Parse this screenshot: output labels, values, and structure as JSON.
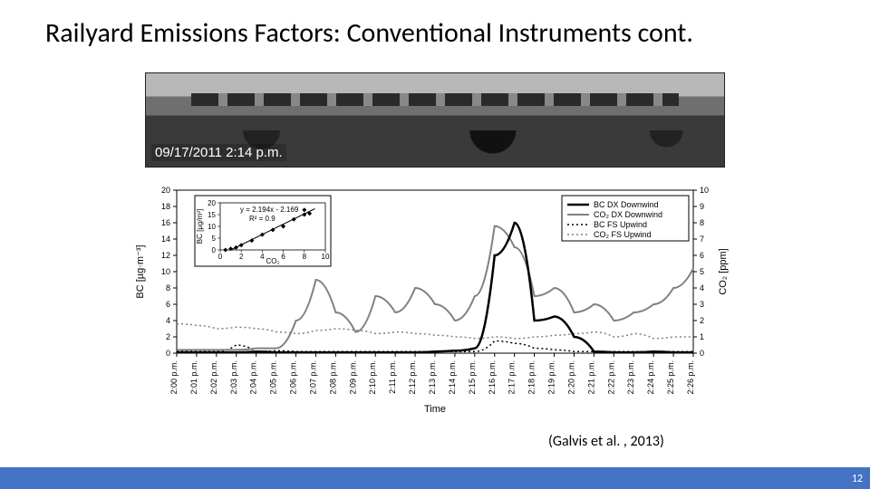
{
  "title": "Railyard Emissions Factors: Conventional Instruments cont.",
  "citation": "(Galvis et al. , 2013)",
  "page_number": "12",
  "photo_timestamp": "09/17/2011 2:14 p.m.",
  "chart": {
    "type": "line",
    "background_color": "#ffffff",
    "plot_border_color": "#000000",
    "x_axis": {
      "label": "Time",
      "ticks": [
        "2:00 p.m.",
        "2:01 p.m.",
        "2:02 p.m.",
        "2:03 p.m.",
        "2:04 p.m.",
        "2:05 p.m.",
        "2:06 p.m.",
        "2:07 p.m.",
        "2:08 p.m.",
        "2:09 p.m.",
        "2:10 p.m.",
        "2:11 p.m.",
        "2:12 p.m.",
        "2:13 p.m.",
        "2:14 p.m.",
        "2:15 p.m.",
        "2:16 p.m.",
        "2:17 p.m.",
        "2:18 p.m.",
        "2:19 p.m.",
        "2:20 p.m.",
        "2:21 p.m.",
        "2:22 p.m.",
        "2:23 p.m.",
        "2:24 p.m.",
        "2:25 p.m.",
        "2:26 p.m."
      ],
      "label_fontsize": 11,
      "tick_fontsize": 9
    },
    "y_left": {
      "label": "BC [µg·m⁻³]",
      "lim": [
        0,
        20
      ],
      "tick_step": 2,
      "label_fontsize": 11,
      "tick_fontsize": 9
    },
    "y_right": {
      "label": "CO₂ [ppm]",
      "lim": [
        0,
        10
      ],
      "tick_step": 1,
      "label_fontsize": 11,
      "tick_fontsize": 9
    },
    "legend": {
      "position": "top-right",
      "border_color": "#000000",
      "items": [
        {
          "label": "BC DX Downwind",
          "color": "#000000",
          "dash": "solid",
          "width": 2.5
        },
        {
          "label": "CO₂ DX Downwind",
          "color": "#808080",
          "dash": "solid",
          "width": 2
        },
        {
          "label": "BC FS Upwind",
          "color": "#000000",
          "dash": "dotted",
          "width": 1.5
        },
        {
          "label": "CO₂ FS Upwind",
          "color": "#808080",
          "dash": "dotted",
          "width": 1.5
        }
      ]
    },
    "series": {
      "bc_downwind": {
        "axis": "left",
        "color": "#000000",
        "dash": "solid",
        "width": 2.5,
        "values": [
          0.1,
          0.1,
          0.1,
          0.1,
          0.2,
          0.1,
          0.1,
          0.1,
          0.1,
          0.1,
          0.1,
          0.1,
          0.1,
          0.2,
          0.3,
          0.6,
          12,
          16,
          4,
          4.5,
          2,
          0.2,
          0.1,
          0.1,
          0.2,
          0.1,
          0.1
        ]
      },
      "co2_downwind": {
        "axis": "right",
        "color": "#808080",
        "dash": "solid",
        "width": 2,
        "values": [
          0.2,
          0.2,
          0.2,
          0.2,
          0.3,
          0.3,
          2,
          4.5,
          2.5,
          1.3,
          3.5,
          2.5,
          4,
          3,
          2,
          3.5,
          7.8,
          6.5,
          3.5,
          4,
          2.5,
          3,
          2,
          2.5,
          3,
          4,
          5.2
        ]
      },
      "bc_upwind": {
        "axis": "left",
        "color": "#000000",
        "dash": "dotted",
        "width": 1.5,
        "values": [
          0.3,
          0.2,
          0.2,
          1.0,
          0.2,
          0.3,
          0.2,
          0.2,
          0.2,
          0.2,
          0.2,
          0.2,
          0.2,
          0.2,
          0.2,
          0.2,
          1.5,
          1.2,
          0.6,
          0.4,
          0.2,
          0.2,
          0.2,
          0.2,
          0.2,
          0.2,
          0.2
        ]
      },
      "co2_upwind": {
        "axis": "right",
        "color": "#808080",
        "dash": "dotted",
        "width": 1.5,
        "values": [
          1.8,
          1.7,
          1.5,
          1.6,
          1.5,
          1.3,
          1.2,
          1.4,
          1.5,
          1.4,
          1.2,
          1.3,
          1.2,
          1.1,
          1.0,
          0.9,
          1.0,
          0.9,
          1.0,
          1.1,
          1.2,
          1.3,
          1.0,
          1.2,
          0.9,
          1.0,
          1.0
        ]
      }
    },
    "inset": {
      "type": "scatter-with-fit",
      "border_color": "#000000",
      "x_label": "CO₂",
      "y_label": "BC [µg/m³]",
      "x_lim": [
        0,
        10
      ],
      "x_tick_step": 2,
      "y_lim": [
        0,
        20
      ],
      "y_tick_step": 5,
      "fit_text": "y = 2.194x - 2.169",
      "r2_text": "R² = 0.9",
      "marker_color": "#000000",
      "line_color": "#000000",
      "points": [
        [
          0.5,
          0
        ],
        [
          1,
          0.5
        ],
        [
          1.5,
          1
        ],
        [
          2,
          2
        ],
        [
          3,
          4
        ],
        [
          4,
          6.5
        ],
        [
          5,
          8.5
        ],
        [
          6,
          10
        ],
        [
          7,
          13
        ],
        [
          8,
          15
        ],
        [
          8.5,
          15.5
        ],
        [
          8,
          17
        ]
      ]
    }
  },
  "footer_color": "#4472c4"
}
